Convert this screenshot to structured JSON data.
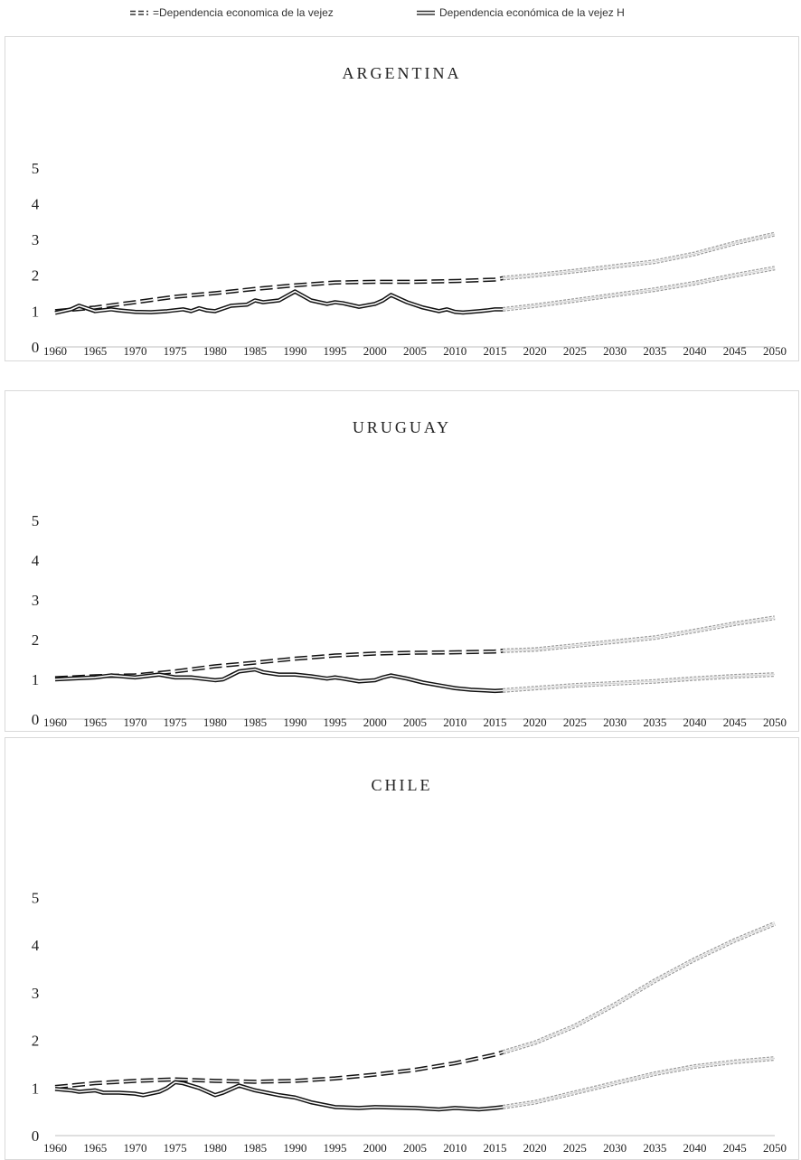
{
  "legend": [
    {
      "label": "=Dependencia economica de la vejez",
      "style": "dashed-double"
    },
    {
      "label": "Dependencia económica de la vejez H",
      "style": "solid-double"
    }
  ],
  "chart_data": [
    {
      "type": "line",
      "title": "ARGENTINA",
      "xlabel": "",
      "ylabel": "",
      "ylim": [
        0,
        5.5
      ],
      "yticks": [
        0,
        1,
        2,
        3,
        4,
        5
      ],
      "xticks": [
        1960,
        1965,
        1970,
        1975,
        1980,
        1985,
        1990,
        1995,
        2000,
        2005,
        2010,
        2015,
        2020,
        2025,
        2030,
        2035,
        2040,
        2045,
        2050
      ],
      "grid": false,
      "projection_start": 2016,
      "series": [
        {
          "name": "=Dependencia economica de la vejez",
          "style": "dashed-double",
          "x": [
            1960,
            1965,
            1970,
            1975,
            1980,
            1985,
            1990,
            1995,
            2000,
            2005,
            2010,
            2015,
            2016,
            2020,
            2025,
            2030,
            2035,
            2040,
            2045,
            2050
          ],
          "y": [
            1.0,
            1.1,
            1.25,
            1.4,
            1.5,
            1.62,
            1.72,
            1.8,
            1.82,
            1.82,
            1.84,
            1.88,
            1.92,
            2.0,
            2.12,
            2.25,
            2.38,
            2.6,
            2.9,
            3.15
          ]
        },
        {
          "name": "Dependencia económica de la vejez H",
          "style": "solid-double",
          "x": [
            1960,
            1962,
            1963,
            1965,
            1967,
            1968,
            1970,
            1972,
            1974,
            1976,
            1977,
            1978,
            1979,
            1980,
            1982,
            1984,
            1985,
            1986,
            1988,
            1990,
            1992,
            1994,
            1995,
            1996,
            1998,
            2000,
            2001,
            2002,
            2004,
            2006,
            2008,
            2009,
            2010,
            2011,
            2013,
            2014,
            2015,
            2016,
            2020,
            2025,
            2030,
            2035,
            2040,
            2045,
            2050
          ],
          "y": [
            0.95,
            1.05,
            1.15,
            1.0,
            1.05,
            1.02,
            0.98,
            0.97,
            1.0,
            1.05,
            1.0,
            1.08,
            1.02,
            1.0,
            1.15,
            1.18,
            1.3,
            1.25,
            1.3,
            1.55,
            1.3,
            1.2,
            1.25,
            1.22,
            1.12,
            1.2,
            1.3,
            1.45,
            1.25,
            1.1,
            1.0,
            1.05,
            0.98,
            0.96,
            1.0,
            1.02,
            1.05,
            1.05,
            1.15,
            1.3,
            1.45,
            1.6,
            1.78,
            2.0,
            2.2
          ]
        }
      ]
    },
    {
      "type": "line",
      "title": "URUGUAY",
      "xlabel": "",
      "ylabel": "",
      "ylim": [
        0,
        5.5
      ],
      "yticks": [
        0,
        1,
        2,
        3,
        4,
        5
      ],
      "xticks": [
        1960,
        1965,
        1970,
        1975,
        1980,
        1985,
        1990,
        1995,
        2000,
        2005,
        2010,
        2015,
        2020,
        2025,
        2030,
        2035,
        2040,
        2045,
        2050
      ],
      "grid": false,
      "projection_start": 2016,
      "series": [
        {
          "name": "=Dependencia economica de la vejez",
          "style": "dashed-double",
          "x": [
            1960,
            1965,
            1970,
            1975,
            1980,
            1985,
            1990,
            1995,
            2000,
            2005,
            2010,
            2015,
            2016,
            2020,
            2025,
            2030,
            2035,
            2040,
            2045,
            2050
          ],
          "y": [
            1.03,
            1.08,
            1.1,
            1.2,
            1.33,
            1.42,
            1.52,
            1.6,
            1.65,
            1.67,
            1.68,
            1.7,
            1.72,
            1.75,
            1.85,
            1.95,
            2.05,
            2.22,
            2.4,
            2.55
          ]
        },
        {
          "name": "Dependencia económica de la vejez H",
          "style": "solid-double",
          "x": [
            1960,
            1962,
            1965,
            1967,
            1970,
            1973,
            1975,
            1977,
            1980,
            1981,
            1983,
            1985,
            1986,
            1988,
            1990,
            1992,
            1994,
            1995,
            1996,
            1998,
            2000,
            2001,
            2002,
            2004,
            2006,
            2008,
            2010,
            2012,
            2014,
            2015,
            2016,
            2020,
            2025,
            2030,
            2035,
            2040,
            2045,
            2050
          ],
          "y": [
            1.0,
            1.02,
            1.05,
            1.1,
            1.05,
            1.12,
            1.05,
            1.05,
            0.98,
            1.0,
            1.2,
            1.25,
            1.18,
            1.12,
            1.12,
            1.08,
            1.02,
            1.05,
            1.02,
            0.95,
            0.98,
            1.05,
            1.1,
            1.02,
            0.92,
            0.85,
            0.78,
            0.74,
            0.72,
            0.71,
            0.72,
            0.78,
            0.85,
            0.9,
            0.95,
            1.02,
            1.08,
            1.12
          ]
        }
      ]
    },
    {
      "type": "line",
      "title": "CHILE",
      "xlabel": "",
      "ylabel": "",
      "ylim": [
        0,
        5.5
      ],
      "yticks": [
        0,
        1,
        2,
        3,
        4,
        5
      ],
      "xticks": [
        1960,
        1965,
        1970,
        1975,
        1980,
        1985,
        1990,
        1995,
        2000,
        2005,
        2010,
        2015,
        2020,
        2025,
        2030,
        2035,
        2040,
        2045,
        2050
      ],
      "grid": false,
      "projection_start": 2016,
      "series": [
        {
          "name": "=Dependencia economica de la vejez",
          "style": "dashed-double",
          "x": [
            1960,
            1965,
            1970,
            1975,
            1980,
            1985,
            1990,
            1995,
            2000,
            2005,
            2010,
            2015,
            2016,
            2020,
            2025,
            2030,
            2035,
            2040,
            2045,
            2050
          ],
          "y": [
            1.02,
            1.1,
            1.15,
            1.18,
            1.15,
            1.13,
            1.15,
            1.2,
            1.28,
            1.38,
            1.52,
            1.7,
            1.75,
            1.95,
            2.3,
            2.75,
            3.25,
            3.7,
            4.1,
            4.45
          ]
        },
        {
          "name": "Dependencia económica de la vejez H",
          "style": "solid-double",
          "x": [
            1960,
            1962,
            1963,
            1965,
            1966,
            1968,
            1970,
            1971,
            1973,
            1974,
            1975,
            1976,
            1978,
            1980,
            1981,
            1983,
            1985,
            1988,
            1990,
            1992,
            1995,
            1998,
            2000,
            2005,
            2008,
            2010,
            2013,
            2015,
            2016,
            2020,
            2025,
            2030,
            2035,
            2040,
            2045,
            2050
          ],
          "y": [
            0.98,
            0.95,
            0.92,
            0.95,
            0.9,
            0.9,
            0.88,
            0.85,
            0.92,
            1.0,
            1.12,
            1.1,
            1.0,
            0.85,
            0.9,
            1.05,
            0.95,
            0.85,
            0.8,
            0.7,
            0.6,
            0.58,
            0.6,
            0.58,
            0.55,
            0.58,
            0.55,
            0.58,
            0.6,
            0.7,
            0.9,
            1.1,
            1.3,
            1.45,
            1.55,
            1.62
          ]
        }
      ]
    }
  ]
}
